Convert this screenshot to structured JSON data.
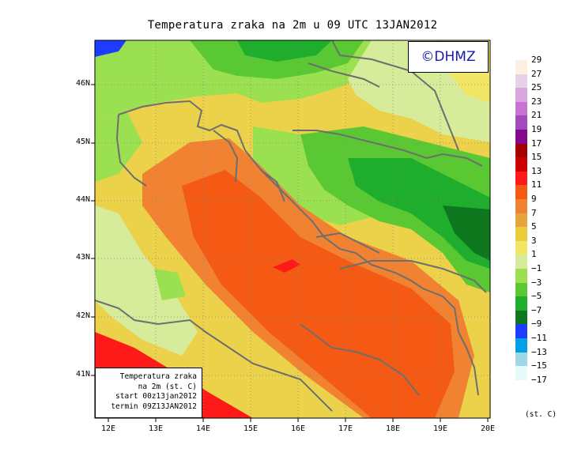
{
  "title": "Temperatura zraka na 2m u 09 UTC 13JAN2012",
  "logo": "©DHMZ",
  "info_box": {
    "line1": "Temperatura zraka",
    "line2": "na 2m (st. C)",
    "line3": "start 00z13jan2012",
    "line4": "termin 09Z13JAN2012"
  },
  "lat_labels": [
    "46N",
    "45N",
    "44N",
    "43N",
    "42N",
    "41N"
  ],
  "lon_labels": [
    "12E",
    "13E",
    "14E",
    "15E",
    "16E",
    "17E",
    "18E",
    "19E",
    "20E"
  ],
  "legend": {
    "units": "(st. C)",
    "labels": [
      "29",
      "27",
      "25",
      "23",
      "21",
      "19",
      "17",
      "15",
      "13",
      "11",
      "9",
      "7",
      "5",
      "3",
      "1",
      "−1",
      "−3",
      "−5",
      "−7",
      "−9",
      "−11",
      "−13",
      "−15",
      "−17"
    ],
    "colors": [
      "#fdf0e0",
      "#e6d2e6",
      "#d9a6dd",
      "#c873d2",
      "#a14bbd",
      "#830a8c",
      "#a50000",
      "#cd0000",
      "#ff1a1a",
      "#f55a14",
      "#f08232",
      "#e6a53c",
      "#ebcd3c",
      "#f0e664",
      "#d7ec9b",
      "#9be050",
      "#5ac832",
      "#1ead2d",
      "#0f781e",
      "#1e3cff",
      "#00a0e6",
      "#a0d7e6",
      "#e6fafa",
      "#ffffff"
    ]
  }
}
